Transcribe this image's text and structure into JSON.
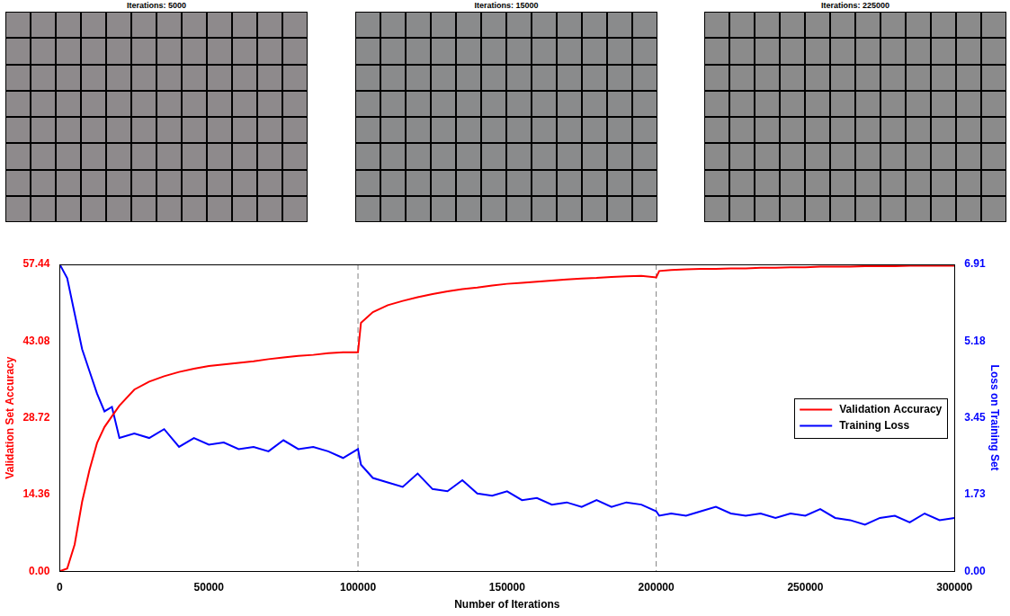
{
  "filter_panels": [
    {
      "title": "Iterations: 5000"
    },
    {
      "title": "Iterations: 15000"
    },
    {
      "title": "Iterations: 225000"
    }
  ],
  "chart_data": {
    "type": "line",
    "x_label": "Number of Iterations",
    "y_label": "Validation Set Accuracy",
    "y2_label": "Loss on Training Set",
    "x": [
      0,
      2500,
      5000,
      7500,
      10000,
      12500,
      15000,
      17500,
      20000,
      25000,
      30000,
      35000,
      40000,
      45000,
      50000,
      55000,
      60000,
      65000,
      70000,
      75000,
      80000,
      85000,
      90000,
      95000,
      100000,
      101000,
      105000,
      110000,
      115000,
      120000,
      125000,
      130000,
      135000,
      140000,
      145000,
      150000,
      155000,
      160000,
      165000,
      170000,
      175000,
      180000,
      185000,
      190000,
      195000,
      200000,
      201000,
      205000,
      210000,
      215000,
      220000,
      225000,
      230000,
      235000,
      240000,
      245000,
      250000,
      255000,
      260000,
      265000,
      270000,
      275000,
      280000,
      285000,
      290000,
      295000,
      300000
    ],
    "series": [
      {
        "name": "Validation Accuracy",
        "color": "#ff0000",
        "values": [
          0,
          0.5,
          5,
          13,
          19,
          24,
          27,
          29,
          31,
          34,
          35.5,
          36.5,
          37.3,
          37.9,
          38.4,
          38.7,
          39,
          39.3,
          39.7,
          40,
          40.3,
          40.5,
          40.8,
          41,
          41,
          46.5,
          48.5,
          49.8,
          50.6,
          51.3,
          51.9,
          52.4,
          52.8,
          53.1,
          53.5,
          53.8,
          54,
          54.2,
          54.4,
          54.6,
          54.8,
          54.9,
          55.1,
          55.2,
          55.3,
          55.0,
          56.2,
          56.4,
          56.5,
          56.6,
          56.6,
          56.7,
          56.7,
          56.8,
          56.8,
          56.9,
          56.9,
          57.0,
          57.0,
          57.0,
          57.1,
          57.1,
          57.1,
          57.2,
          57.2,
          57.2,
          57.2
        ]
      },
      {
        "name": "Training Loss",
        "color": "#0000ff",
        "axis": "y2",
        "values": [
          6.91,
          6.6,
          5.8,
          5.0,
          4.5,
          4.0,
          3.6,
          3.7,
          3.0,
          3.1,
          3.0,
          3.2,
          2.8,
          3.0,
          2.85,
          2.9,
          2.75,
          2.8,
          2.7,
          2.95,
          2.75,
          2.8,
          2.7,
          2.55,
          2.75,
          2.4,
          2.1,
          2.0,
          1.9,
          2.2,
          1.85,
          1.8,
          2.05,
          1.75,
          1.7,
          1.8,
          1.6,
          1.65,
          1.5,
          1.55,
          1.45,
          1.6,
          1.45,
          1.55,
          1.5,
          1.35,
          1.25,
          1.3,
          1.25,
          1.35,
          1.45,
          1.3,
          1.25,
          1.3,
          1.2,
          1.3,
          1.25,
          1.4,
          1.2,
          1.15,
          1.05,
          1.2,
          1.25,
          1.1,
          1.3,
          1.15,
          1.2
        ]
      }
    ],
    "xlim": [
      0,
      300000
    ],
    "xticks": [
      0,
      50000,
      100000,
      150000,
      200000,
      250000,
      300000
    ],
    "ylim": [
      0,
      57.44
    ],
    "yticks": [
      {
        "value": 0,
        "label": "0.00"
      },
      14.36,
      28.72,
      43.08,
      57.44
    ],
    "y2lim": [
      0,
      6.91
    ],
    "y2ticks": [
      {
        "value": 0,
        "label": "0.00"
      },
      1.73,
      3.45,
      5.18,
      6.91
    ],
    "vlines": [
      100000,
      200000
    ],
    "grid": false,
    "legend": "right"
  }
}
